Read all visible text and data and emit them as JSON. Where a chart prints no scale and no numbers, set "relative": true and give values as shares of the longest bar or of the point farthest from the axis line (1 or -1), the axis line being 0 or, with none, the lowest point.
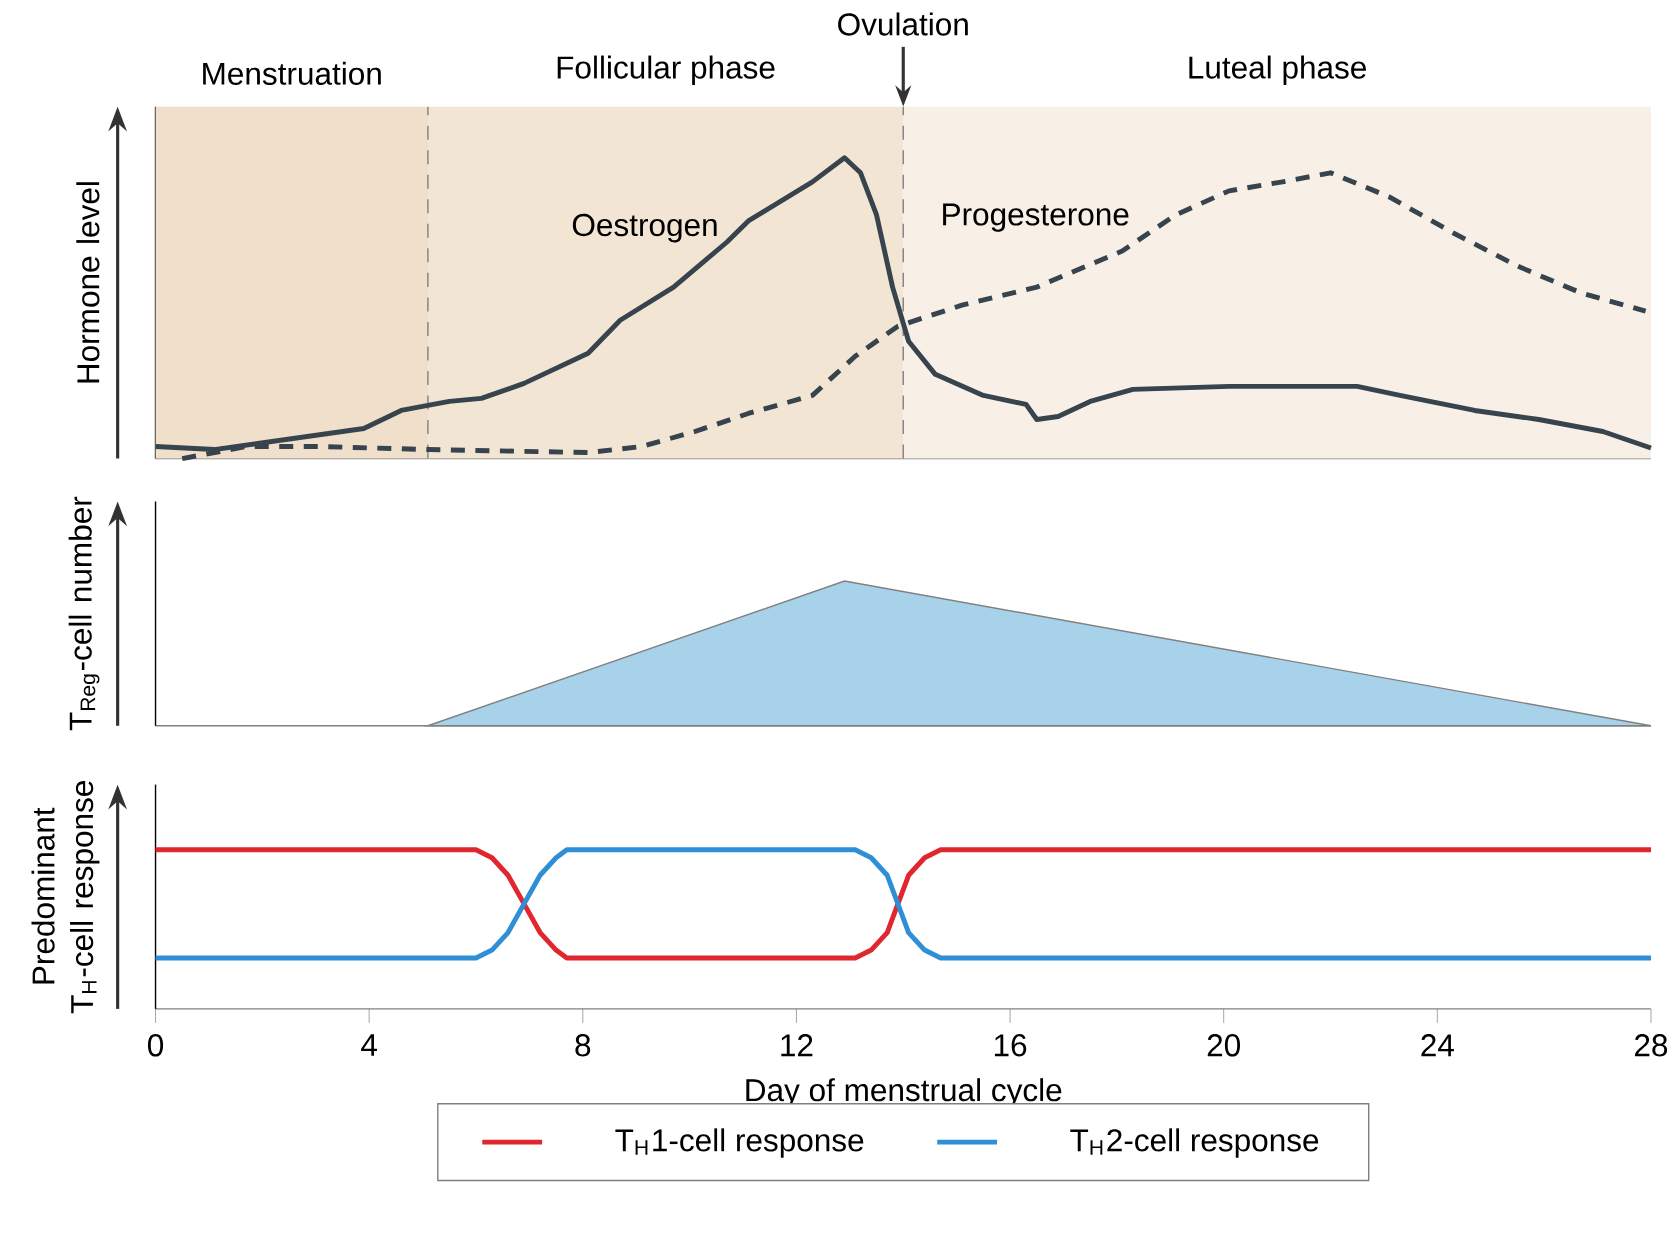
{
  "chart_data": [
    {
      "type": "line",
      "ylabel": "Hormone level",
      "relative": true,
      "xlim": [
        0,
        28
      ],
      "tick_labels": false,
      "series": [
        {
          "name": "Oestrogen",
          "color": "#37434d",
          "line_style": "solid",
          "x": [
            0,
            1.1,
            2.3,
            3.9,
            4.6,
            5.5,
            6.1,
            6.9,
            8.1,
            8.7,
            9.7,
            10.7,
            11.1,
            12.3,
            12.9,
            13.2,
            13.5,
            13.8,
            14.1,
            14.6,
            15.5,
            16.3,
            16.5,
            16.9,
            17.5,
            18.3,
            20.1,
            22.5,
            23.3,
            24.7,
            25.9,
            27.1,
            28
          ],
          "values": [
            0.04,
            0.03,
            0.06,
            0.1,
            0.16,
            0.19,
            0.2,
            0.25,
            0.35,
            0.46,
            0.57,
            0.72,
            0.79,
            0.92,
            1.0,
            0.95,
            0.81,
            0.57,
            0.39,
            0.28,
            0.21,
            0.18,
            0.13,
            0.14,
            0.19,
            0.23,
            0.24,
            0.24,
            0.21,
            0.16,
            0.13,
            0.09,
            0.035
          ]
        },
        {
          "name": "Progesterone",
          "color": "#37434d",
          "line_style": "dashed",
          "x": [
            0.5,
            1.7,
            3.1,
            5.1,
            8.1,
            9.1,
            10.1,
            11.1,
            12.3,
            13.1,
            13.9,
            15.1,
            16.5,
            18.1,
            19.1,
            20.1,
            21.1,
            22.0,
            23.1,
            24.3,
            25.5,
            26.7,
            27.9
          ],
          "values": [
            0.0,
            0.04,
            0.04,
            0.03,
            0.02,
            0.04,
            0.09,
            0.15,
            0.21,
            0.34,
            0.44,
            0.51,
            0.57,
            0.69,
            0.81,
            0.89,
            0.92,
            0.95,
            0.87,
            0.75,
            0.64,
            0.55,
            0.49
          ]
        }
      ],
      "ref_lines": [
        {
          "axis": "x",
          "value": 5.1,
          "line_style": "dashed"
        },
        {
          "axis": "x",
          "value": 14,
          "label": "Ovulation",
          "line_style": "dashed"
        }
      ],
      "bands": [
        {
          "axis": "x",
          "from": 0,
          "to": 5.1,
          "label": "Menstruation",
          "color": "#efdfcb"
        },
        {
          "axis": "x",
          "from": 5.1,
          "to": 14,
          "label": "Follicular phase",
          "color": "#f2e5d4"
        },
        {
          "axis": "x",
          "from": 14,
          "to": 28,
          "label": "Luteal phase",
          "color": "#f8efe6"
        }
      ]
    },
    {
      "type": "area",
      "ylabel": "T$_{Reg}$-cell number",
      "relative": true,
      "xlim": [
        0,
        28
      ],
      "tick_labels": false,
      "series": [
        {
          "color": "#a8d2ea",
          "x": [
            5.1,
            12.9,
            28
          ],
          "values": [
            0,
            1.0,
            0
          ]
        }
      ]
    },
    {
      "type": "line",
      "ylabel": "Predominant T$_{H}$-cell response",
      "xlabel": "Day of menstrual cycle",
      "relative": true,
      "xlim": [
        0,
        28
      ],
      "xticks": [
        0,
        4,
        8,
        12,
        16,
        20,
        24,
        28
      ],
      "tick_labels": "x",
      "legend": "bottom",
      "series": [
        {
          "name": "T$_{H}$1-cell response",
          "color": "#e0262e",
          "x": [
            0,
            6.0,
            6.3,
            6.6,
            6.9,
            7.2,
            7.5,
            7.7,
            13.1,
            13.4,
            13.7,
            13.9,
            14.1,
            14.4,
            14.7,
            28
          ],
          "values": [
            1,
            1,
            0.95,
            0.84,
            0.66,
            0.48,
            0.37,
            0.32,
            0.32,
            0.37,
            0.48,
            0.66,
            0.84,
            0.95,
            1,
            1
          ]
        },
        {
          "name": "T$_{H}$2-cell response",
          "color": "#2f8fd6",
          "x": [
            0,
            6.0,
            6.3,
            6.6,
            6.9,
            7.2,
            7.5,
            7.7,
            13.1,
            13.4,
            13.7,
            13.9,
            14.1,
            14.4,
            14.7,
            28
          ],
          "values": [
            0.32,
            0.32,
            0.37,
            0.48,
            0.66,
            0.84,
            0.95,
            1,
            1,
            0.95,
            0.84,
            0.66,
            0.48,
            0.37,
            0.32,
            0.32
          ]
        }
      ]
    }
  ]
}
